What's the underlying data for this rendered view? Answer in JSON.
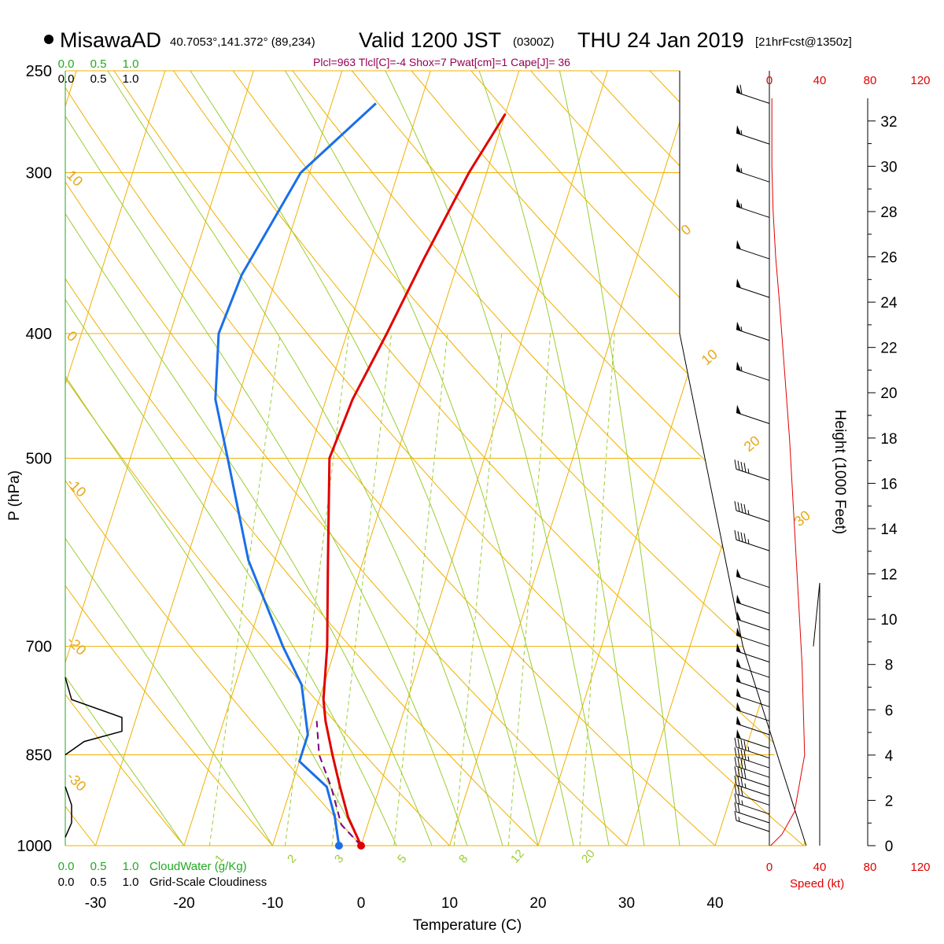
{
  "header": {
    "station": "MisawaAD",
    "coords": "40.7053°,141.372° (89,234)",
    "valid_label": "Valid 1200 JST",
    "utc": "(0300Z)",
    "date": "THU 24 Jan 2019",
    "forecast": "[21hrFcst@1350z]"
  },
  "params_line": "Plcl=963 Tlcl[C]=-4 Shox=7 Pwat[cm]=1 Cape[J]= 36",
  "colors": {
    "temperature": "#e00000",
    "dewpoint": "#1a6fe8",
    "parcel": "#7a0080",
    "isobar_isotherm": "#f0b000",
    "dry_adiabat": "#f0b000",
    "moist_adiabat": "#9acd32",
    "mixing_ratio": "#9acd32",
    "cloud": "#000000",
    "wind_speed": "#e00000"
  },
  "chart_data": {
    "type": "line",
    "title": "MisawaAD Valid 1200 JST (0300Z) THU 24 Jan 2019",
    "xlabel": "Temperature (C)",
    "ylabel": "P (hPa)",
    "x_ticks": [
      "-30",
      "-20",
      "-10",
      "0",
      "10",
      "20",
      "30",
      "40"
    ],
    "y_ticks": [
      "250",
      "300",
      "400",
      "500",
      "700",
      "850",
      "1000"
    ],
    "height_axis_label": "Height (1000 Feet)",
    "height_ticks": [
      "0",
      "2",
      "4",
      "6",
      "8",
      "10",
      "12",
      "14",
      "16",
      "18",
      "20",
      "22",
      "24",
      "26",
      "28",
      "30",
      "32"
    ],
    "cloud_water_label": "CloudWater (g/Kg)",
    "cloud_water_ticks": [
      "0.0",
      "0.5",
      "1.0"
    ],
    "cloudiness_label": "Grid-Scale Cloudiness",
    "cloudiness_ticks": [
      "0.0",
      "0.5",
      "1.0"
    ],
    "speed_label": "Speed (kt)",
    "speed_ticks": [
      "0",
      "40",
      "80",
      "120"
    ],
    "isotherm_labels": [
      "10",
      "0",
      "-10",
      "-20",
      "-30"
    ],
    "dry_adiabat_labels": [
      "0",
      "10",
      "20",
      "30"
    ],
    "mixing_ratio_labels": [
      "1",
      "2",
      "3",
      "5",
      "8",
      "12",
      "20"
    ],
    "series": [
      {
        "name": "Temperature",
        "points": [
          [
            0.0,
            1000
          ],
          [
            -2.5,
            950
          ],
          [
            -4.5,
            900
          ],
          [
            -6.5,
            850
          ],
          [
            -8.5,
            800
          ],
          [
            -9.5,
            770
          ],
          [
            -11.0,
            700
          ],
          [
            -14.0,
            600
          ],
          [
            -17.5,
            500
          ],
          [
            -17.0,
            450
          ],
          [
            -15.5,
            400
          ],
          [
            -14.0,
            350
          ],
          [
            -12.0,
            300
          ],
          [
            -10.0,
            270
          ]
        ]
      },
      {
        "name": "Dewpoint",
        "points": [
          [
            -2.5,
            1000
          ],
          [
            -4.0,
            950
          ],
          [
            -6.0,
            900
          ],
          [
            -10.0,
            860
          ],
          [
            -10.0,
            820
          ],
          [
            -12.5,
            750
          ],
          [
            -16.0,
            700
          ],
          [
            -23.0,
            600
          ],
          [
            -29.0,
            500
          ],
          [
            -32.5,
            450
          ],
          [
            -34.5,
            400
          ],
          [
            -34.0,
            360
          ],
          [
            -31.0,
            300
          ],
          [
            -25.0,
            265
          ]
        ]
      },
      {
        "name": "Parcel",
        "points": [
          [
            0.0,
            1000
          ],
          [
            -3.0,
            963
          ],
          [
            -5.5,
            900
          ],
          [
            -8.0,
            850
          ],
          [
            -9.5,
            800
          ]
        ]
      }
    ],
    "cloudiness_profile": [
      [
        0.0,
        740
      ],
      [
        0.05,
        770
      ],
      [
        0.45,
        795
      ],
      [
        0.45,
        815
      ],
      [
        0.15,
        830
      ],
      [
        0.0,
        850
      ]
    ],
    "cloudiness_profile_low": [
      [
        0.0,
        900
      ],
      [
        0.05,
        930
      ],
      [
        0.05,
        960
      ],
      [
        0.0,
        985
      ]
    ],
    "wind_speed_profile_ft": [
      [
        1,
        0
      ],
      [
        10,
        0.5
      ],
      [
        20,
        1.5
      ],
      [
        28,
        4
      ],
      [
        26,
        8
      ],
      [
        20,
        14
      ],
      [
        16,
        18
      ],
      [
        12,
        21
      ],
      [
        8,
        24
      ],
      [
        5,
        26
      ],
      [
        3,
        28
      ],
      [
        2,
        30
      ],
      [
        2,
        33
      ]
    ],
    "wind_barbs": [
      {
        "p": 265,
        "spd": 60
      },
      {
        "p": 285,
        "spd": 55
      },
      {
        "p": 305,
        "spd": 55
      },
      {
        "p": 325,
        "spd": 55
      },
      {
        "p": 350,
        "spd": 50
      },
      {
        "p": 375,
        "spd": 50
      },
      {
        "p": 405,
        "spd": 55
      },
      {
        "p": 435,
        "spd": 55
      },
      {
        "p": 470,
        "spd": 50
      },
      {
        "p": 520,
        "spd": 45
      },
      {
        "p": 560,
        "spd": 45
      },
      {
        "p": 590,
        "spd": 45
      },
      {
        "p": 630,
        "spd": 50
      },
      {
        "p": 660,
        "spd": 50
      },
      {
        "p": 680,
        "spd": 50
      },
      {
        "p": 700,
        "spd": 50
      },
      {
        "p": 720,
        "spd": 50
      },
      {
        "p": 740,
        "spd": 50
      },
      {
        "p": 760,
        "spd": 50
      },
      {
        "p": 780,
        "spd": 50
      },
      {
        "p": 800,
        "spd": 50
      },
      {
        "p": 820,
        "spd": 50
      },
      {
        "p": 840,
        "spd": 50
      },
      {
        "p": 855,
        "spd": 45
      },
      {
        "p": 870,
        "spd": 45
      },
      {
        "p": 885,
        "spd": 40
      },
      {
        "p": 900,
        "spd": 40
      },
      {
        "p": 915,
        "spd": 35
      },
      {
        "p": 930,
        "spd": 30
      },
      {
        "p": 945,
        "spd": 25
      },
      {
        "p": 960,
        "spd": 20
      },
      {
        "p": 975,
        "spd": 15
      }
    ]
  }
}
